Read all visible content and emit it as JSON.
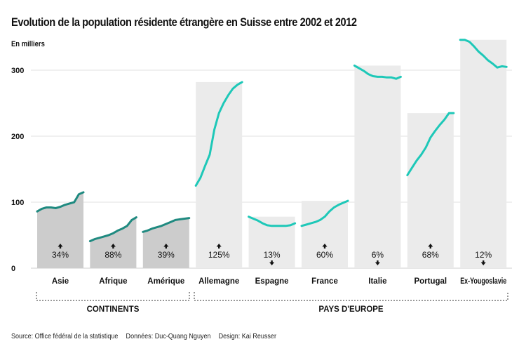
{
  "chart_data": {
    "type": "area",
    "title": "Evolution de la population résidente étrangère en Suisse entre 2002 et 2012",
    "ylabel": "En milliers",
    "xlabel": "",
    "ylim": [
      0,
      350
    ],
    "yticks": [
      0,
      100,
      200,
      300
    ],
    "x": [
      2002,
      2003,
      2004,
      2005,
      2006,
      2007,
      2008,
      2009,
      2010,
      2011,
      2012
    ],
    "grid": true,
    "groups": [
      {
        "label": "CONTINENTS",
        "color": "#cccccc",
        "line_color": "#1f8a80"
      },
      {
        "label": "PAYS D'EUROPE",
        "color": "#ebebeb",
        "line_color": "#1ec8b8"
      }
    ],
    "series": [
      {
        "name": "Asie",
        "group": 0,
        "change": "34%",
        "direction": "up",
        "values": [
          86,
          90,
          92,
          92,
          91,
          93,
          96,
          98,
          100,
          112,
          115
        ]
      },
      {
        "name": "Afrique",
        "group": 0,
        "change": "88%",
        "direction": "up",
        "values": [
          41,
          44,
          46,
          48,
          50,
          53,
          57,
          60,
          64,
          73,
          77
        ]
      },
      {
        "name": "Amérique",
        "group": 0,
        "change": "39%",
        "direction": "up",
        "values": [
          55,
          57,
          60,
          62,
          64,
          67,
          70,
          73,
          74,
          75,
          76
        ]
      },
      {
        "name": "Allemagne",
        "group": 1,
        "change": "125%",
        "direction": "up",
        "values": [
          125,
          137,
          155,
          172,
          210,
          235,
          250,
          262,
          272,
          278,
          282
        ]
      },
      {
        "name": "Espagne",
        "group": 1,
        "change": "13%",
        "direction": "down",
        "values": [
          78,
          75,
          72,
          68,
          65,
          64,
          64,
          64,
          64,
          65,
          68
        ]
      },
      {
        "name": "France",
        "group": 1,
        "change": "60%",
        "direction": "up",
        "values": [
          64,
          66,
          68,
          70,
          73,
          78,
          86,
          92,
          96,
          99,
          102
        ]
      },
      {
        "name": "Italie",
        "group": 1,
        "change": "6%",
        "direction": "down",
        "values": [
          307,
          303,
          299,
          294,
          291,
          290,
          290,
          289,
          289,
          287,
          290
        ]
      },
      {
        "name": "Portugal",
        "group": 1,
        "change": "68%",
        "direction": "up",
        "values": [
          141,
          152,
          163,
          172,
          183,
          198,
          208,
          217,
          225,
          235,
          235
        ]
      },
      {
        "name": "Ex-Yougoslavie",
        "group": 1,
        "change": "12%",
        "direction": "down",
        "values": [
          346,
          346,
          343,
          336,
          328,
          322,
          315,
          310,
          304,
          306,
          305
        ]
      }
    ]
  },
  "footer": {
    "source": "Source: Office fédéral de la statistique",
    "data": "Données: Duc-Quang Nguyen",
    "design": "Design: Kai Reusser"
  }
}
